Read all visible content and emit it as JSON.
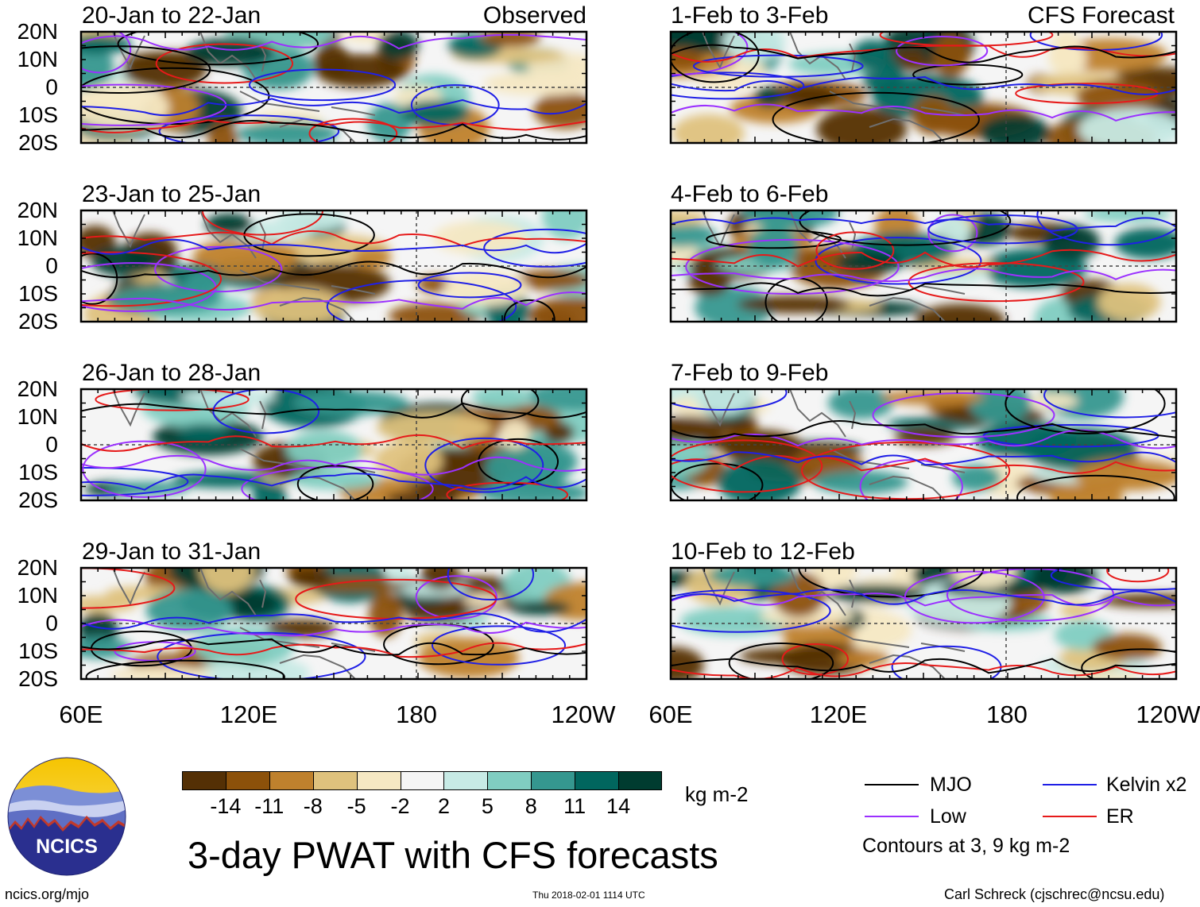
{
  "header": {
    "left_label": "Observed",
    "right_label": "CFS Forecast"
  },
  "latitude_labels": [
    "20N",
    "10N",
    "0",
    "10S",
    "20S"
  ],
  "longitude_labels": [
    "60E",
    "120E",
    "180",
    "120W"
  ],
  "panels": {
    "left": [
      {
        "title": "20-Jan to 22-Jan"
      },
      {
        "title": "23-Jan to 25-Jan"
      },
      {
        "title": "26-Jan to 28-Jan"
      },
      {
        "title": "29-Jan to 31-Jan"
      }
    ],
    "right": [
      {
        "title": "1-Feb to 3-Feb"
      },
      {
        "title": "4-Feb to 6-Feb"
      },
      {
        "title": "7-Feb to 9-Feb"
      },
      {
        "title": "10-Feb to 12-Feb"
      }
    ]
  },
  "colorbar": {
    "labels": [
      "-14",
      "-11",
      "-8",
      "-5",
      "-2",
      "2",
      "5",
      "8",
      "11",
      "14"
    ],
    "colors": [
      "#543005",
      "#8c510a",
      "#bf812d",
      "#dfc27d",
      "#f6e8c3",
      "#f5f5f5",
      "#c7eae5",
      "#80cdc1",
      "#35978f",
      "#01665e",
      "#003c30"
    ],
    "units": "kg m-2"
  },
  "legend": {
    "items": [
      {
        "label": "MJO",
        "color": "#000000"
      },
      {
        "label": "Kelvin x2",
        "color": "#1f1fe6"
      },
      {
        "label": "Low",
        "color": "#9b30ff"
      },
      {
        "label": "ER",
        "color": "#e61a1a"
      }
    ],
    "note": "Contours at 3, 9 kg m-2"
  },
  "logo": {
    "text": "NCICS"
  },
  "main_title": "3-day PWAT with CFS forecasts",
  "footer": {
    "url": "ncics.org/mjo",
    "timestamp": "Thu 2018-02-01 1114 UTC",
    "credit": "Carl Schreck (cjschrec@ncsu.edu)"
  }
}
